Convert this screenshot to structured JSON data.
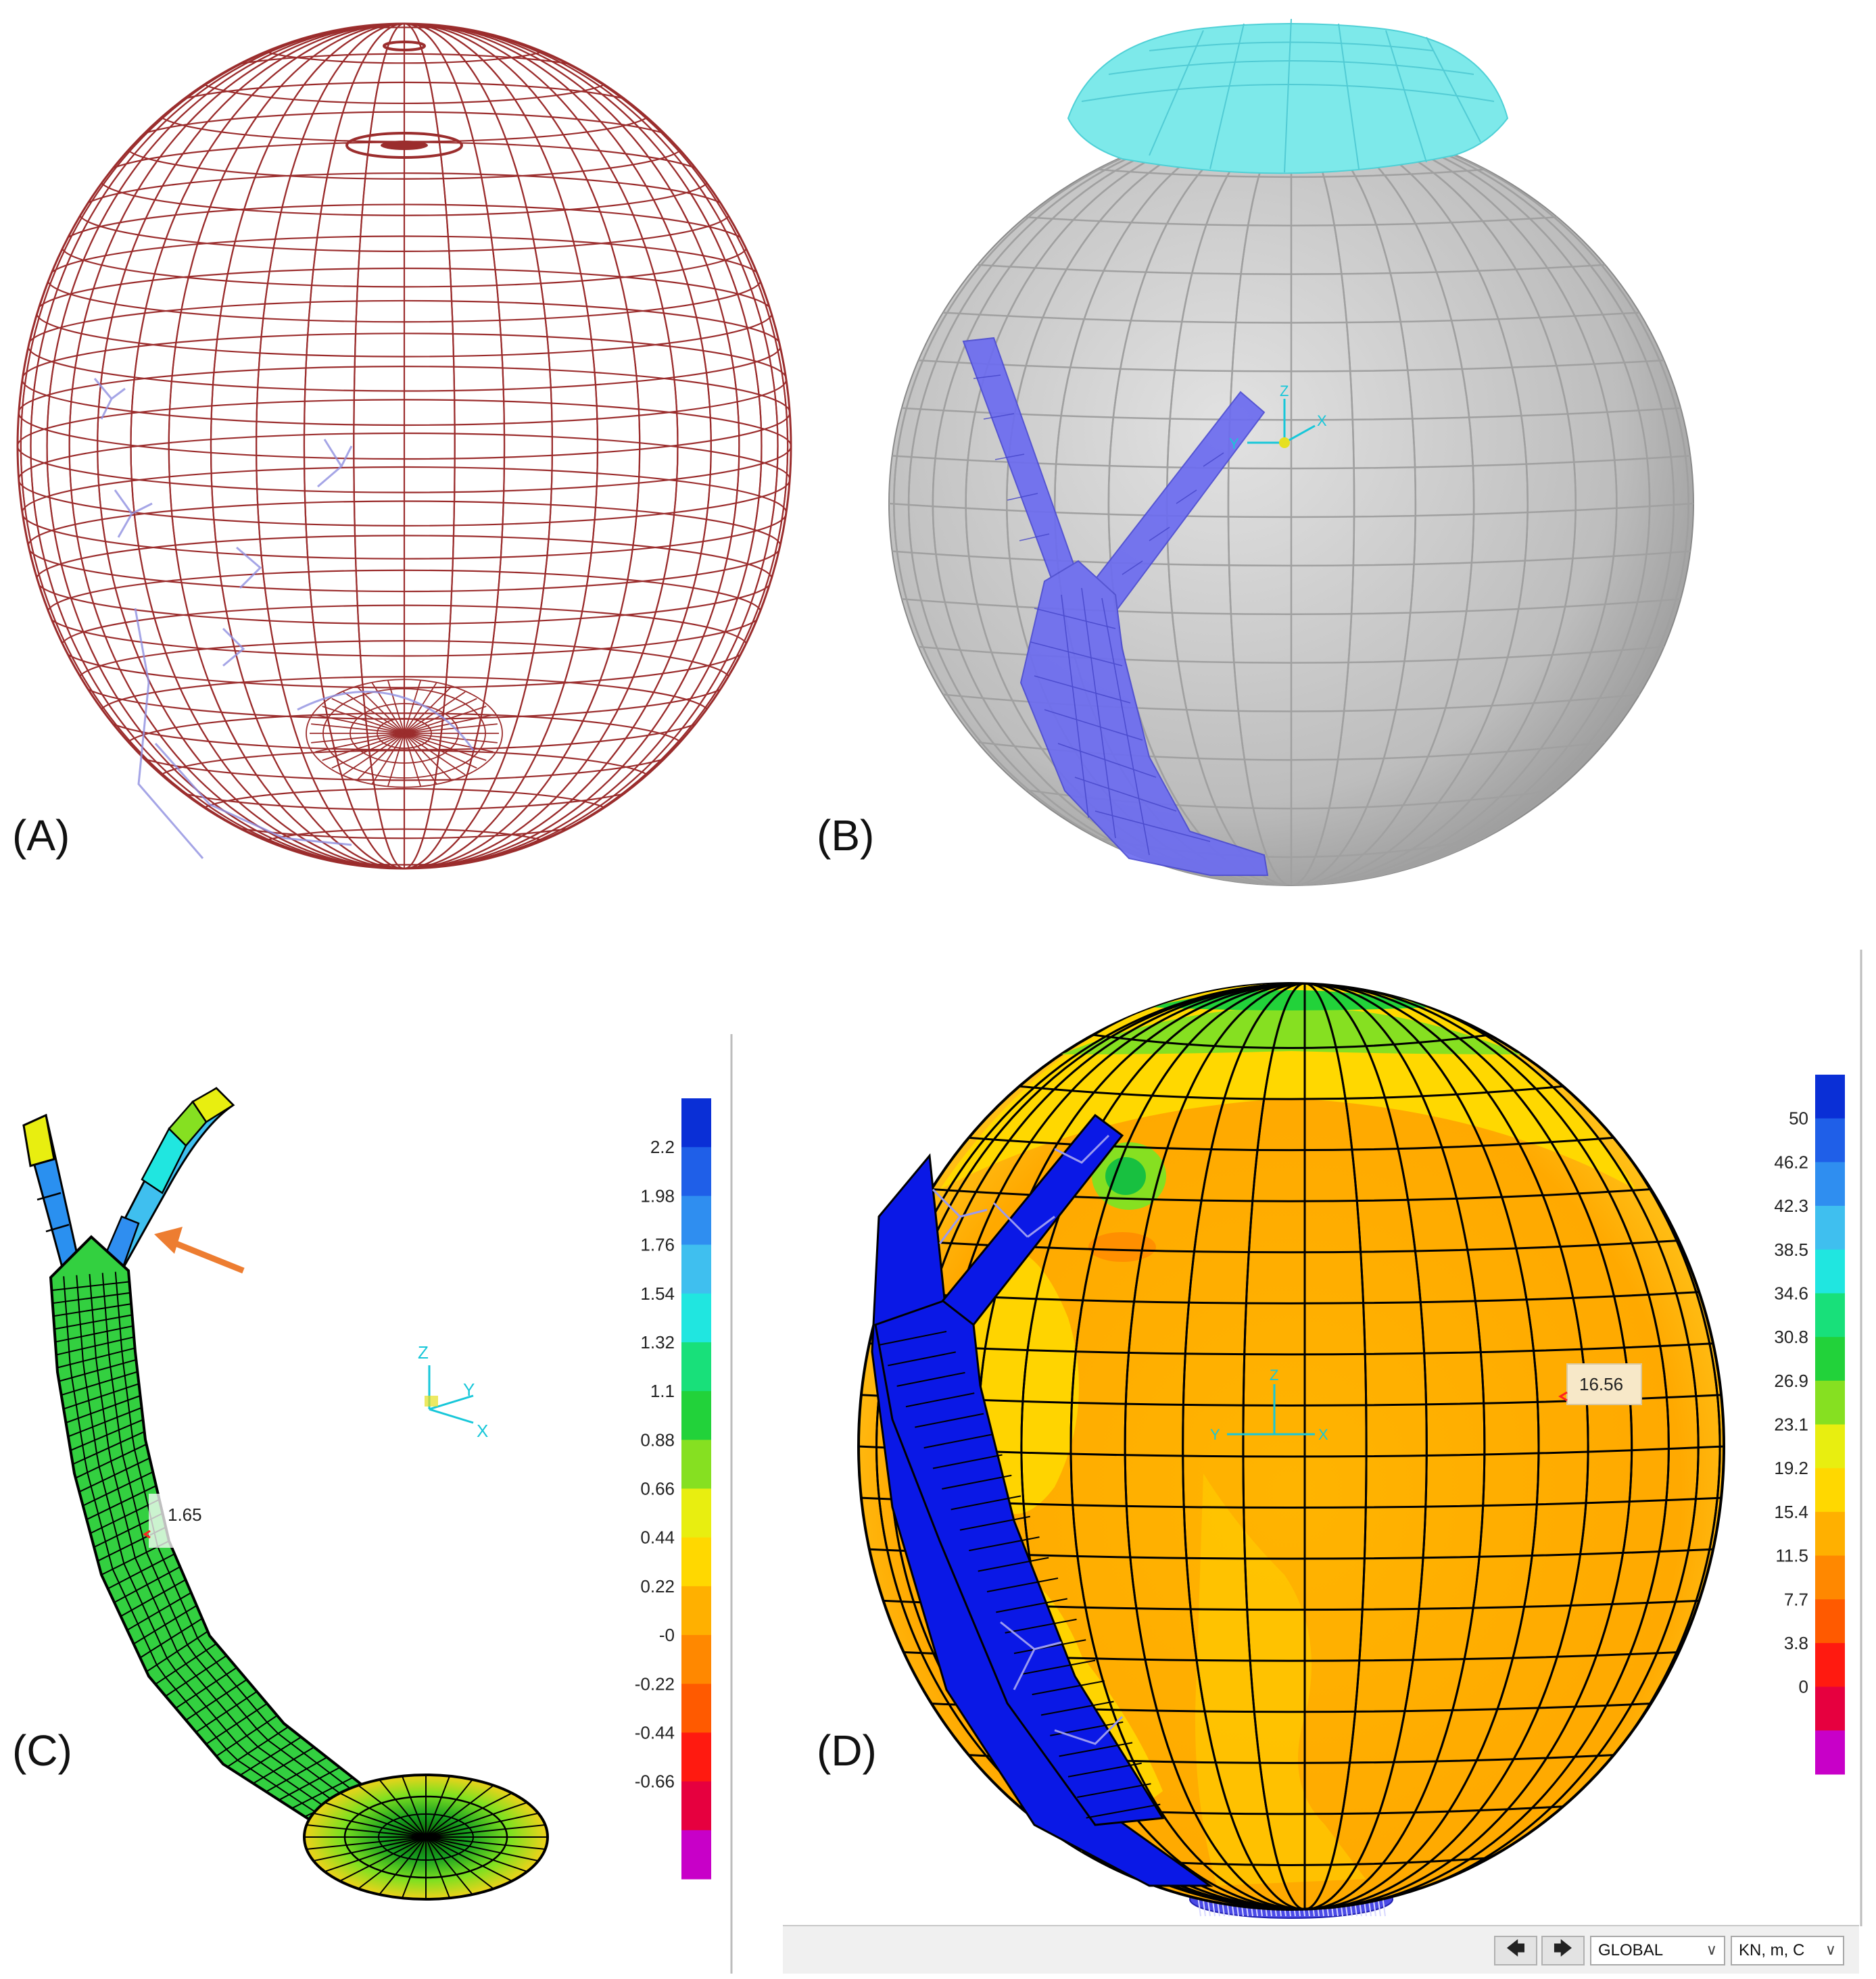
{
  "panels": {
    "a": {
      "label": "(A)"
    },
    "b": {
      "label": "(B)"
    },
    "c": {
      "label": "(C)"
    },
    "d": {
      "label": "(D)"
    }
  },
  "panel_c": {
    "legend_ticks": [
      "2.2",
      "1.98",
      "1.76",
      "1.54",
      "1.32",
      "1.1",
      "0.88",
      "0.66",
      "0.44",
      "0.22",
      "-0",
      "-0.22",
      "-0.44",
      "-0.66"
    ],
    "legend_colors": [
      "#0a2fd6",
      "#1f5fe8",
      "#2f8ef0",
      "#3fbfef",
      "#20e6e0",
      "#18e07a",
      "#22d23a",
      "#86e021",
      "#e8ee10",
      "#ffd800",
      "#ffb000",
      "#ff8800",
      "#ff5a00",
      "#ff1a10",
      "#e6003f",
      "#c800c8"
    ],
    "callout_value": "1.65",
    "axes": {
      "z": "Z",
      "y": "Y",
      "x": "X"
    }
  },
  "panel_d": {
    "legend_ticks": [
      "50",
      "46.2",
      "42.3",
      "38.5",
      "34.6",
      "30.8",
      "26.9",
      "23.1",
      "19.2",
      "15.4",
      "11.5",
      "7.7",
      "3.8",
      "0"
    ],
    "legend_colors": [
      "#0a2fd6",
      "#1f5fe8",
      "#2f8ef0",
      "#3fbfef",
      "#20e6e0",
      "#18e07a",
      "#22d23a",
      "#86e021",
      "#e8ee10",
      "#ffd800",
      "#ffb000",
      "#ff8800",
      "#ff5a00",
      "#ff1a10",
      "#e6003f",
      "#c800c8"
    ],
    "callout_value": "16.56",
    "axes": {
      "z": "Z",
      "y": "Y",
      "x": "X"
    }
  },
  "panel_b": {
    "axes": {
      "z": "Z",
      "y": "Y",
      "x": "X"
    }
  },
  "statusbar": {
    "prev_icon": "arrow-left-icon",
    "next_icon": "arrow-right-icon",
    "coord_system": "GLOBAL",
    "units": "KN, m, C"
  },
  "colors": {
    "wire_red": "#9b2d2d",
    "wire_blue": "#8f8fe0",
    "grey_sphere": "#b4b4b4",
    "cyan_cap": "#7de9ea",
    "blue_structure": "#6c6cf0",
    "orange_surface": "#ffa500",
    "arrow_orange": "#ed7d31"
  }
}
